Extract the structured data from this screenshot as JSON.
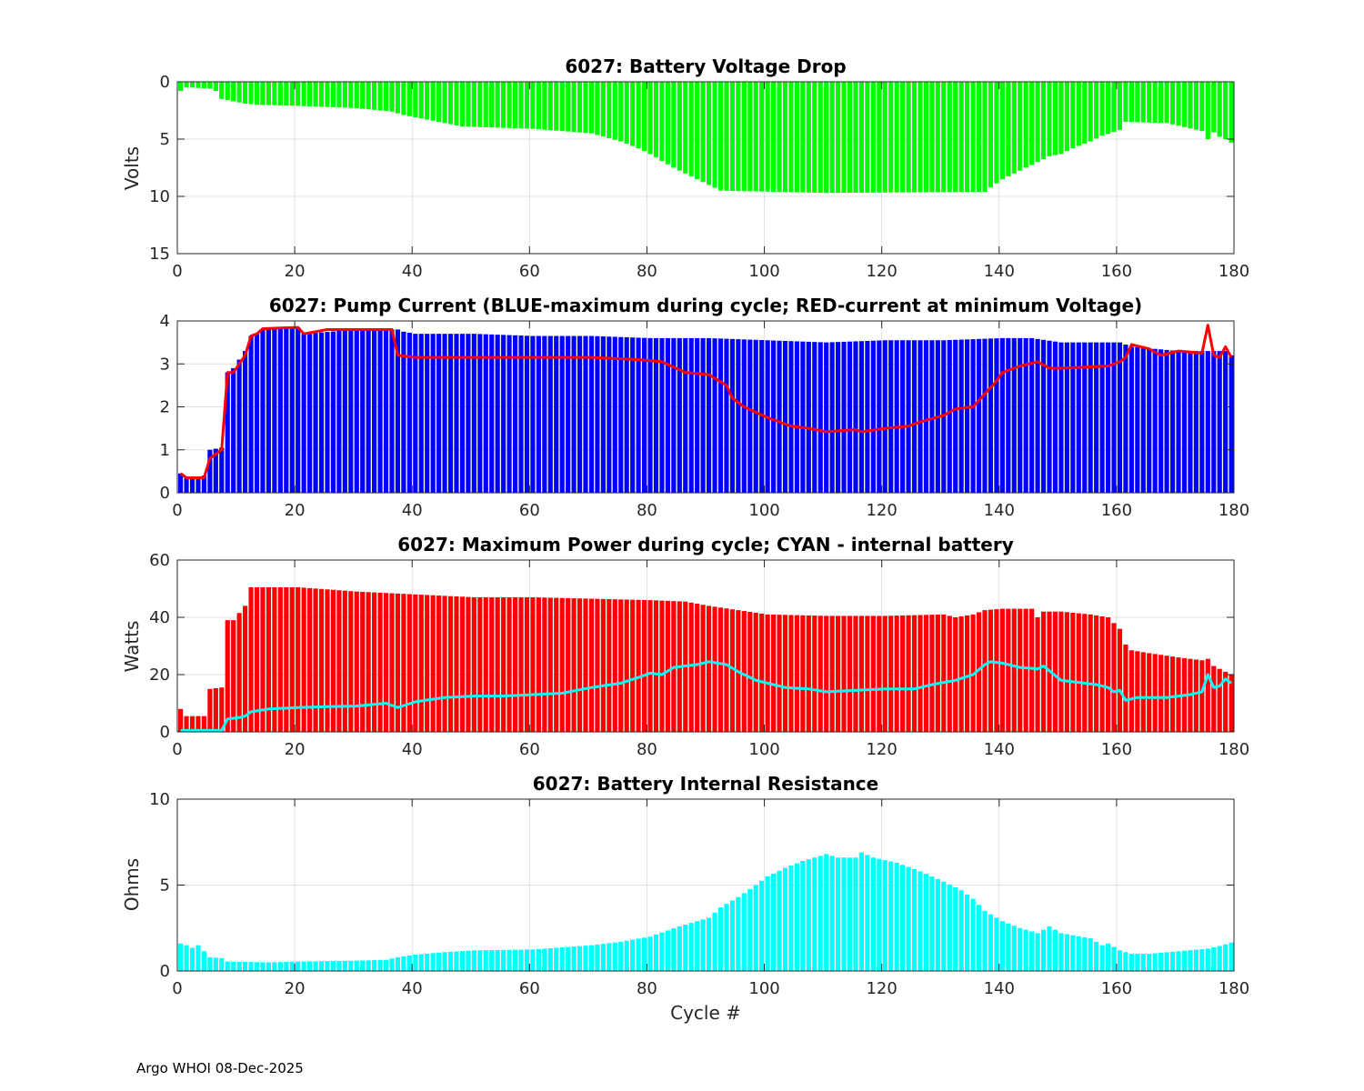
{
  "footer": "Argo WHOI 08-Dec-2025",
  "colors": {
    "green": "#00ff00",
    "blue": "#0000ff",
    "red": "#ff0000",
    "cyan": "#00ffff",
    "grid": "#e0e0e0",
    "axis": "#262626"
  },
  "chart_data": [
    {
      "type": "bar",
      "title": "6027: Battery Voltage Drop",
      "xlabel": "",
      "ylabel": "Volts",
      "xlim": [
        0,
        180
      ],
      "ylim": [
        0,
        15
      ],
      "y_reversed": true,
      "xticks": [
        0,
        20,
        40,
        60,
        80,
        100,
        120,
        140,
        160,
        180
      ],
      "yticks": [
        0,
        5,
        10,
        15
      ],
      "grid": true,
      "bar_color": "green",
      "keypoints": [
        [
          0,
          0.8
        ],
        [
          1,
          0.5
        ],
        [
          2,
          0.5
        ],
        [
          5,
          0.6
        ],
        [
          6,
          0.8
        ],
        [
          7,
          1.5
        ],
        [
          10,
          1.8
        ],
        [
          11,
          1.9
        ],
        [
          13,
          2.0
        ],
        [
          20,
          2.1
        ],
        [
          30,
          2.3
        ],
        [
          36,
          2.6
        ],
        [
          38,
          2.9
        ],
        [
          44,
          3.5
        ],
        [
          48,
          3.9
        ],
        [
          60,
          4.1
        ],
        [
          70,
          4.5
        ],
        [
          75,
          5.2
        ],
        [
          78,
          5.8
        ],
        [
          80,
          6.3
        ],
        [
          84,
          7.5
        ],
        [
          88,
          8.5
        ],
        [
          90,
          9.0
        ],
        [
          92,
          9.5
        ],
        [
          110,
          9.7
        ],
        [
          137,
          9.6
        ],
        [
          140,
          8.5
        ],
        [
          144,
          7.5
        ],
        [
          146,
          7.0
        ],
        [
          148,
          6.5
        ],
        [
          150,
          6.3
        ],
        [
          152,
          5.8
        ],
        [
          155,
          5.2
        ],
        [
          157,
          4.7
        ],
        [
          160,
          4.2
        ],
        [
          161,
          3.5
        ],
        [
          168,
          3.6
        ],
        [
          174,
          4.3
        ],
        [
          175,
          5.0
        ],
        [
          176,
          4.4
        ],
        [
          177,
          4.8
        ],
        [
          178,
          5.0
        ],
        [
          179,
          5.3
        ]
      ]
    },
    {
      "type": "bar",
      "title": "6027: Pump Current (BLUE-maximum during cycle; RED-current at minimum Voltage)",
      "xlabel": "",
      "ylabel": "",
      "xlim": [
        0,
        180
      ],
      "ylim": [
        0,
        4
      ],
      "xticks": [
        0,
        20,
        40,
        60,
        80,
        100,
        120,
        140,
        160,
        180
      ],
      "yticks": [
        0,
        1,
        2,
        3,
        4
      ],
      "grid": true,
      "bar_color": "blue",
      "line_color": "red",
      "bar_keypoints": [
        [
          0,
          0.45
        ],
        [
          1,
          0.35
        ],
        [
          3,
          0.35
        ],
        [
          4,
          0.4
        ],
        [
          5,
          1.0
        ],
        [
          7,
          1.05
        ],
        [
          8,
          2.8
        ],
        [
          9,
          2.9
        ],
        [
          10,
          3.1
        ],
        [
          11,
          3.3
        ],
        [
          12,
          3.65
        ],
        [
          13,
          3.7
        ],
        [
          14,
          3.8
        ],
        [
          15,
          3.85
        ],
        [
          20,
          3.85
        ],
        [
          21,
          3.7
        ],
        [
          30,
          3.8
        ],
        [
          36,
          3.8
        ],
        [
          37,
          3.8
        ],
        [
          38,
          3.75
        ],
        [
          40,
          3.7
        ],
        [
          50,
          3.7
        ],
        [
          60,
          3.65
        ],
        [
          70,
          3.65
        ],
        [
          80,
          3.6
        ],
        [
          90,
          3.6
        ],
        [
          100,
          3.55
        ],
        [
          110,
          3.5
        ],
        [
          120,
          3.55
        ],
        [
          130,
          3.55
        ],
        [
          140,
          3.6
        ],
        [
          145,
          3.6
        ],
        [
          150,
          3.5
        ],
        [
          160,
          3.5
        ],
        [
          162,
          3.4
        ],
        [
          170,
          3.3
        ],
        [
          178,
          3.3
        ],
        [
          179,
          3.2
        ]
      ],
      "line_keypoints": [
        [
          0,
          0.45
        ],
        [
          1,
          0.35
        ],
        [
          4,
          0.35
        ],
        [
          5,
          0.8
        ],
        [
          7,
          1.0
        ],
        [
          8,
          2.8
        ],
        [
          9,
          2.8
        ],
        [
          10,
          3.0
        ],
        [
          11,
          3.2
        ],
        [
          12,
          3.65
        ],
        [
          13,
          3.7
        ],
        [
          14,
          3.82
        ],
        [
          20,
          3.85
        ],
        [
          21,
          3.7
        ],
        [
          25,
          3.8
        ],
        [
          36,
          3.8
        ],
        [
          37,
          3.2
        ],
        [
          40,
          3.15
        ],
        [
          50,
          3.15
        ],
        [
          60,
          3.15
        ],
        [
          70,
          3.15
        ],
        [
          78,
          3.1
        ],
        [
          82,
          3.05
        ],
        [
          86,
          2.8
        ],
        [
          90,
          2.75
        ],
        [
          93,
          2.5
        ],
        [
          94,
          2.2
        ],
        [
          96,
          2.0
        ],
        [
          100,
          1.75
        ],
        [
          104,
          1.55
        ],
        [
          107,
          1.5
        ],
        [
          110,
          1.42
        ],
        [
          115,
          1.47
        ],
        [
          116,
          1.42
        ],
        [
          120,
          1.5
        ],
        [
          124,
          1.55
        ],
        [
          126,
          1.65
        ],
        [
          130,
          1.8
        ],
        [
          132,
          1.95
        ],
        [
          135,
          2.0
        ],
        [
          137,
          2.3
        ],
        [
          139,
          2.6
        ],
        [
          140,
          2.8
        ],
        [
          143,
          2.95
        ],
        [
          146,
          3.05
        ],
        [
          148,
          2.9
        ],
        [
          150,
          2.9
        ],
        [
          158,
          2.95
        ],
        [
          160,
          3.05
        ],
        [
          161,
          3.15
        ],
        [
          162,
          3.45
        ],
        [
          165,
          3.35
        ],
        [
          167,
          3.2
        ],
        [
          170,
          3.3
        ],
        [
          174,
          3.25
        ],
        [
          175,
          3.9
        ],
        [
          176,
          3.2
        ],
        [
          177,
          3.15
        ],
        [
          178,
          3.4
        ],
        [
          179,
          3.15
        ]
      ]
    },
    {
      "type": "bar",
      "title": "6027: Maximum Power during cycle; CYAN - internal battery",
      "xlabel": "",
      "ylabel": "Watts",
      "xlim": [
        0,
        180
      ],
      "ylim": [
        0,
        60
      ],
      "xticks": [
        0,
        20,
        40,
        60,
        80,
        100,
        120,
        140,
        160,
        180
      ],
      "yticks": [
        0,
        20,
        40,
        60
      ],
      "grid": true,
      "bar_color": "red",
      "line_color": "cyan",
      "bar_keypoints": [
        [
          0,
          8
        ],
        [
          1,
          5.5
        ],
        [
          4,
          5.5
        ],
        [
          5,
          15
        ],
        [
          7,
          15.5
        ],
        [
          8,
          39
        ],
        [
          9,
          39
        ],
        [
          10,
          41.5
        ],
        [
          11,
          44
        ],
        [
          12,
          50.5
        ],
        [
          20,
          50.5
        ],
        [
          30,
          49
        ],
        [
          40,
          48
        ],
        [
          50,
          47
        ],
        [
          60,
          47
        ],
        [
          70,
          46.5
        ],
        [
          80,
          46
        ],
        [
          86,
          45.5
        ],
        [
          90,
          44
        ],
        [
          95,
          42.5
        ],
        [
          100,
          41
        ],
        [
          110,
          40.5
        ],
        [
          120,
          40.5
        ],
        [
          130,
          41
        ],
        [
          132,
          40
        ],
        [
          135,
          41
        ],
        [
          137,
          42.5
        ],
        [
          140,
          43
        ],
        [
          145,
          43
        ],
        [
          146,
          40
        ],
        [
          147,
          42
        ],
        [
          150,
          42
        ],
        [
          155,
          41
        ],
        [
          158,
          40
        ],
        [
          160,
          36
        ],
        [
          161,
          30.5
        ],
        [
          162,
          28.5
        ],
        [
          165,
          27.5
        ],
        [
          170,
          26
        ],
        [
          174,
          25
        ],
        [
          175,
          25.5
        ],
        [
          176,
          23
        ],
        [
          177,
          22
        ],
        [
          179,
          20
        ]
      ],
      "line_keypoints": [
        [
          0,
          0.5
        ],
        [
          7,
          0.5
        ],
        [
          8,
          4.5
        ],
        [
          10,
          5
        ],
        [
          11,
          5.5
        ],
        [
          12,
          7
        ],
        [
          15,
          8
        ],
        [
          20,
          8.5
        ],
        [
          25,
          8.8
        ],
        [
          30,
          9
        ],
        [
          35,
          10
        ],
        [
          37,
          8.5
        ],
        [
          40,
          10.5
        ],
        [
          45,
          12
        ],
        [
          50,
          12.5
        ],
        [
          55,
          12.5
        ],
        [
          60,
          13
        ],
        [
          65,
          13.5
        ],
        [
          70,
          15.5
        ],
        [
          75,
          17
        ],
        [
          78,
          19
        ],
        [
          80,
          20.5
        ],
        [
          82,
          20
        ],
        [
          84,
          22.5
        ],
        [
          88,
          23.5
        ],
        [
          90,
          24.5
        ],
        [
          93,
          23.5
        ],
        [
          95,
          21
        ],
        [
          98,
          18
        ],
        [
          100,
          17
        ],
        [
          103,
          15.5
        ],
        [
          107,
          15
        ],
        [
          110,
          14
        ],
        [
          115,
          14.5
        ],
        [
          120,
          15
        ],
        [
          125,
          15
        ],
        [
          128,
          16.5
        ],
        [
          132,
          18
        ],
        [
          135,
          20
        ],
        [
          137,
          23.5
        ],
        [
          138,
          24.5
        ],
        [
          140,
          24
        ],
        [
          143,
          22.5
        ],
        [
          146,
          22
        ],
        [
          147,
          23
        ],
        [
          150,
          18
        ],
        [
          156,
          16.5
        ],
        [
          158,
          15.5
        ],
        [
          159,
          14
        ],
        [
          160,
          14.5
        ],
        [
          161,
          11
        ],
        [
          163,
          12
        ],
        [
          168,
          12
        ],
        [
          172,
          13
        ],
        [
          174,
          14
        ],
        [
          175,
          20
        ],
        [
          176,
          15.5
        ],
        [
          177,
          16
        ],
        [
          178,
          18.5
        ],
        [
          179,
          17
        ]
      ]
    },
    {
      "type": "bar",
      "title": "6027: Battery Internal Resistance",
      "xlabel": "Cycle #",
      "ylabel": "Ohms",
      "xlim": [
        0,
        180
      ],
      "ylim": [
        0,
        10
      ],
      "xticks": [
        0,
        20,
        40,
        60,
        80,
        100,
        120,
        140,
        160,
        180
      ],
      "yticks": [
        0,
        5,
        10
      ],
      "grid": true,
      "bar_color": "cyan",
      "keypoints": [
        [
          0,
          1.6
        ],
        [
          1,
          1.5
        ],
        [
          2,
          1.35
        ],
        [
          3,
          1.5
        ],
        [
          5,
          0.8
        ],
        [
          7,
          0.75
        ],
        [
          8,
          0.55
        ],
        [
          15,
          0.5
        ],
        [
          20,
          0.55
        ],
        [
          30,
          0.6
        ],
        [
          35,
          0.65
        ],
        [
          37,
          0.8
        ],
        [
          40,
          0.95
        ],
        [
          45,
          1.1
        ],
        [
          50,
          1.2
        ],
        [
          60,
          1.25
        ],
        [
          70,
          1.5
        ],
        [
          75,
          1.7
        ],
        [
          80,
          2.0
        ],
        [
          85,
          2.6
        ],
        [
          88,
          2.9
        ],
        [
          90,
          3.1
        ],
        [
          92,
          3.7
        ],
        [
          95,
          4.3
        ],
        [
          98,
          5.0
        ],
        [
          100,
          5.5
        ],
        [
          103,
          6.0
        ],
        [
          106,
          6.4
        ],
        [
          110,
          6.8
        ],
        [
          112,
          6.6
        ],
        [
          115,
          6.6
        ],
        [
          116,
          6.9
        ],
        [
          118,
          6.6
        ],
        [
          122,
          6.3
        ],
        [
          126,
          5.8
        ],
        [
          130,
          5.2
        ],
        [
          133,
          4.7
        ],
        [
          135,
          4.2
        ],
        [
          137,
          3.5
        ],
        [
          140,
          2.9
        ],
        [
          143,
          2.5
        ],
        [
          146,
          2.2
        ],
        [
          148,
          2.6
        ],
        [
          150,
          2.2
        ],
        [
          155,
          1.9
        ],
        [
          157,
          1.5
        ],
        [
          158,
          1.6
        ],
        [
          160,
          1.2
        ],
        [
          162,
          1.0
        ],
        [
          165,
          1.0
        ],
        [
          170,
          1.15
        ],
        [
          175,
          1.3
        ],
        [
          177,
          1.45
        ],
        [
          179,
          1.65
        ]
      ]
    }
  ]
}
